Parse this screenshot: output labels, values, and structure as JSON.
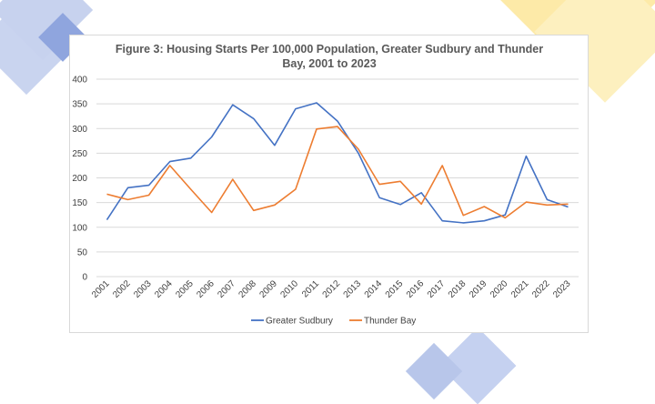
{
  "chart_data": {
    "type": "line",
    "title": [
      "Figure 3: Housing Starts Per 100,000 Population, Greater Sudbury and Thunder",
      "Bay, 2001 to 2023"
    ],
    "xlabel": "",
    "ylabel": "",
    "categories": [
      "2001",
      "2002",
      "2003",
      "2004",
      "2005",
      "2006",
      "2007",
      "2008",
      "2009",
      "2010",
      "2011",
      "2012",
      "2013",
      "2014",
      "2015",
      "2016",
      "2017",
      "2018",
      "2019",
      "2020",
      "2021",
      "2022",
      "2023"
    ],
    "ylim": [
      0,
      400
    ],
    "yticks": [
      0,
      50,
      100,
      150,
      200,
      250,
      300,
      350,
      400
    ],
    "grid": true,
    "legend_position": "bottom",
    "series": [
      {
        "name": "Greater Sudbury",
        "color": "#4472c4",
        "values": [
          115,
          180,
          185,
          233,
          240,
          283,
          348,
          320,
          266,
          340,
          352,
          315,
          250,
          160,
          146,
          170,
          113,
          109,
          113,
          125,
          244,
          156,
          141
        ]
      },
      {
        "name": "Thunder Bay",
        "color": "#ed7d31",
        "values": [
          167,
          156,
          165,
          225,
          177,
          130,
          197,
          134,
          145,
          177,
          299,
          304,
          258,
          187,
          193,
          147,
          225,
          124,
          142,
          119,
          151,
          145,
          147
        ]
      }
    ]
  }
}
